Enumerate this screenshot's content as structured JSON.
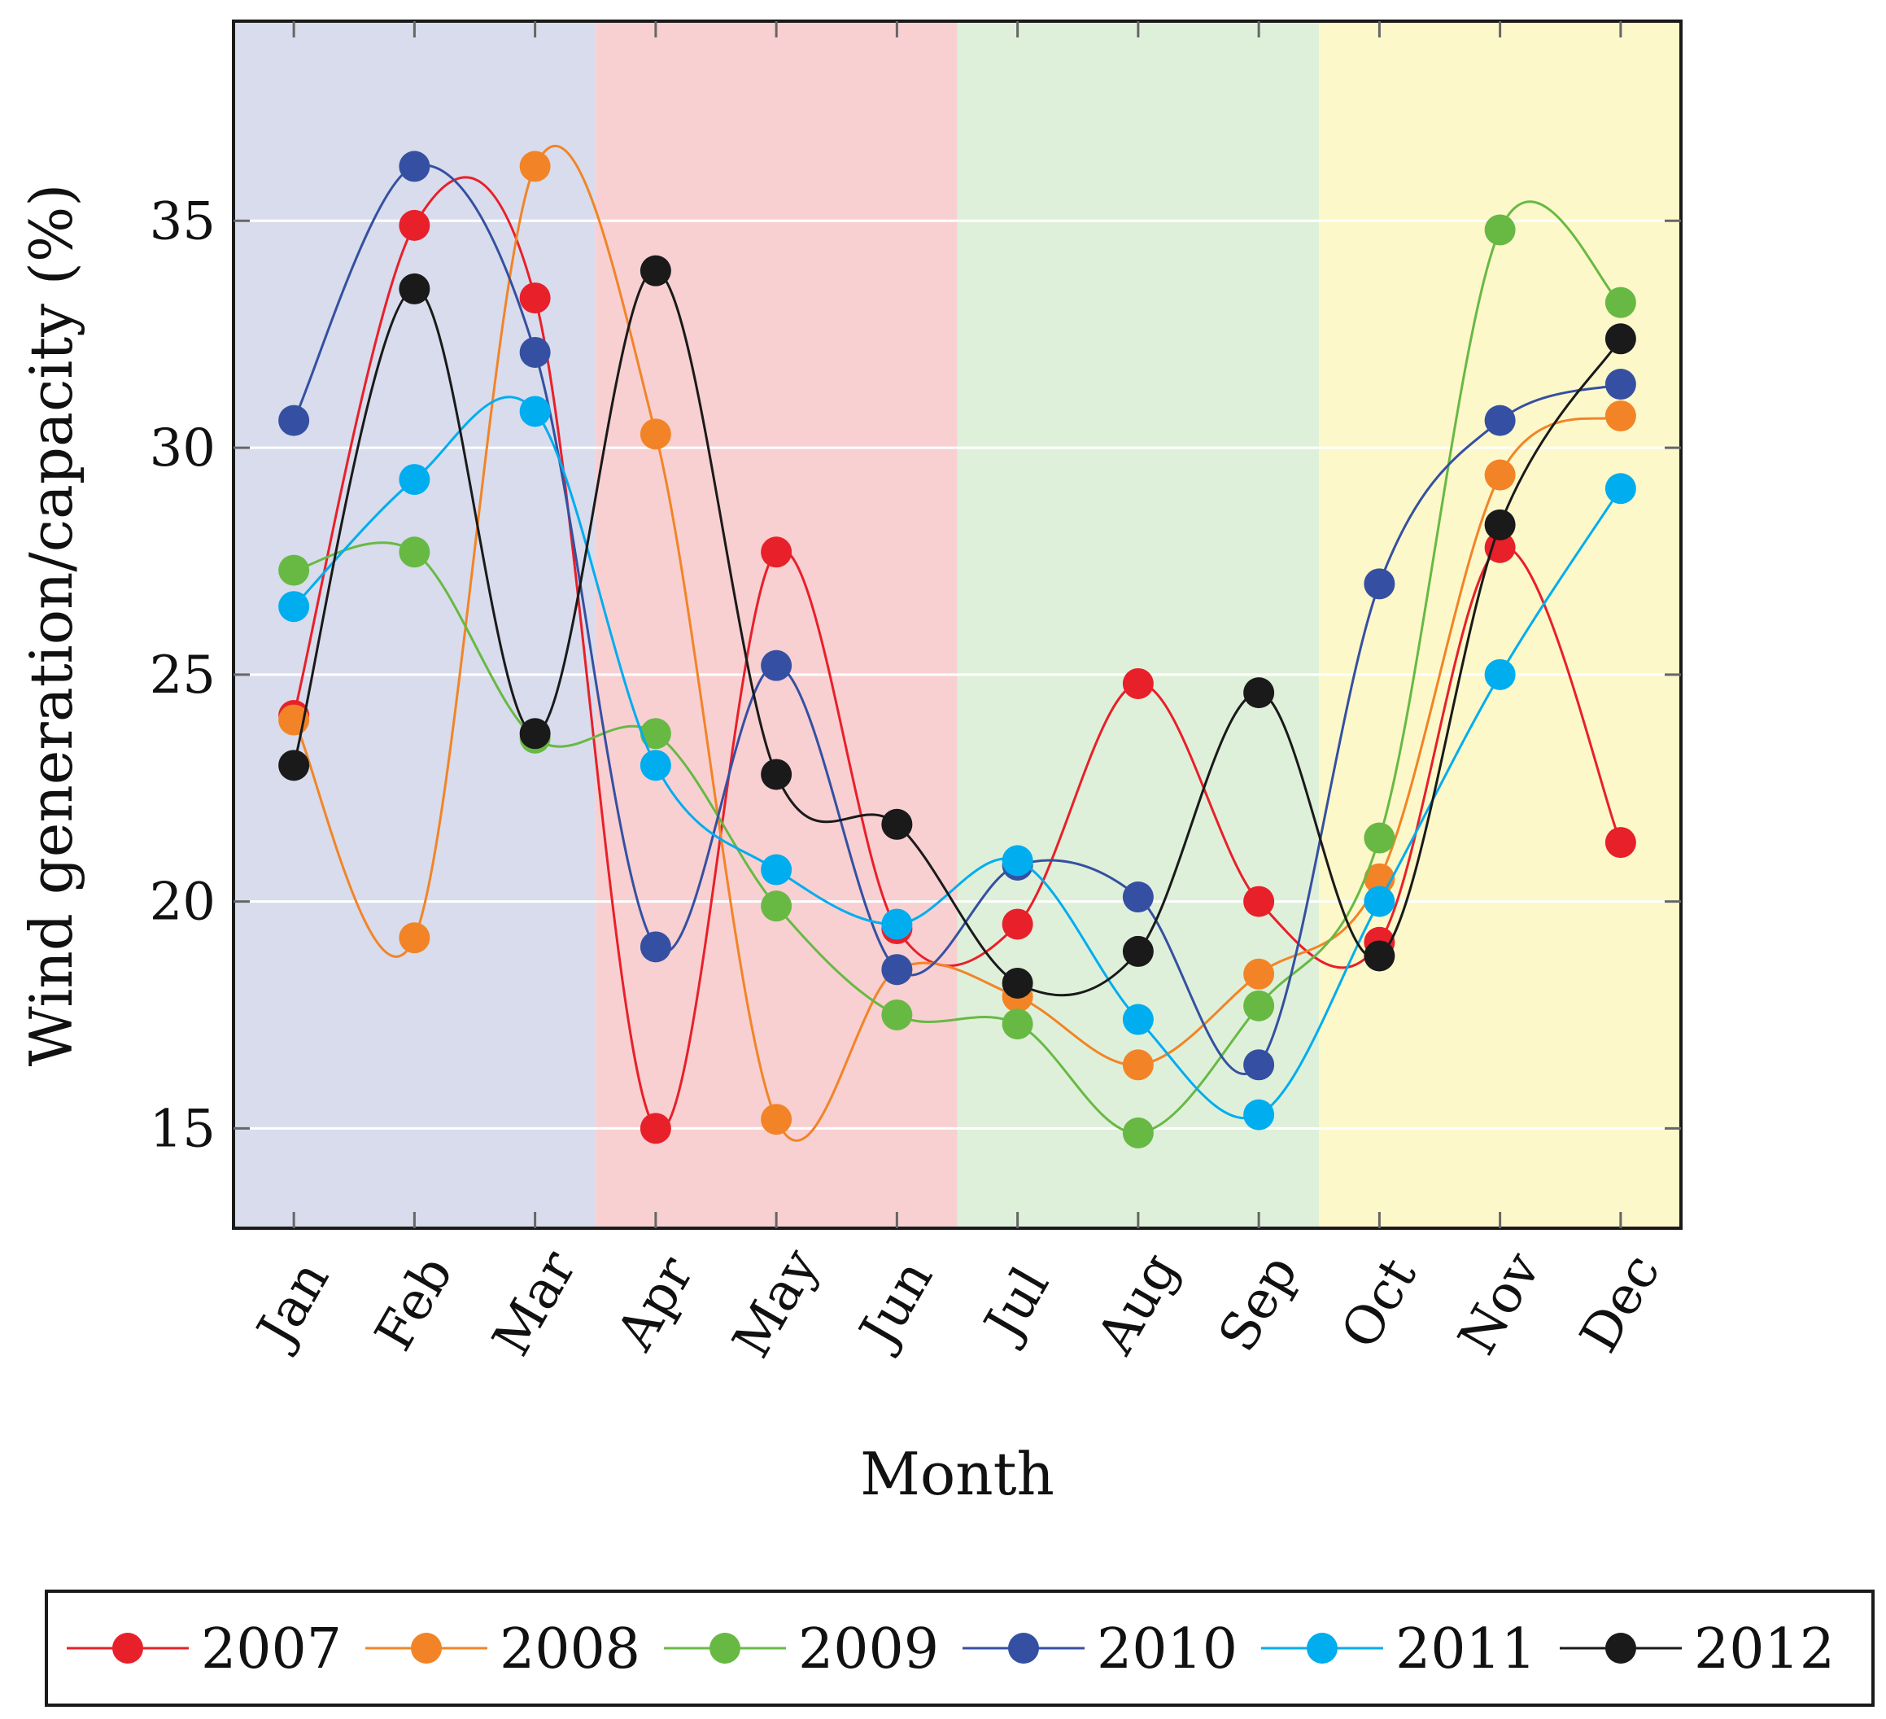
{
  "chart_data": {
    "type": "line",
    "title": "",
    "xlabel": "Month",
    "ylabel": "Wind generation/capacity (%)",
    "categories": [
      "Jan",
      "Feb",
      "Mar",
      "Apr",
      "May",
      "Jun",
      "Jul",
      "Aug",
      "Sep",
      "Oct",
      "Nov",
      "Dec"
    ],
    "ylim": [
      12.8,
      39.4
    ],
    "yticks": [
      15,
      20,
      25,
      30,
      35
    ],
    "grid": true,
    "legend_position": "bottom",
    "season_bands": [
      {
        "from": "Jan",
        "to": "Mar",
        "color": "#d8dcec"
      },
      {
        "from": "Apr",
        "to": "Jun",
        "color": "#f8d0d2"
      },
      {
        "from": "Jul",
        "to": "Sep",
        "color": "#dff0da"
      },
      {
        "from": "Oct",
        "to": "Dec",
        "color": "#fcf8ca"
      }
    ],
    "series": [
      {
        "name": "2007",
        "color": "#e8202a",
        "values": [
          24.1,
          34.9,
          33.3,
          15.0,
          27.7,
          19.4,
          19.5,
          24.8,
          20.0,
          19.1,
          27.8,
          21.3
        ]
      },
      {
        "name": "2008",
        "color": "#f28427",
        "values": [
          24.0,
          19.2,
          36.2,
          30.3,
          15.2,
          18.5,
          17.9,
          16.4,
          18.4,
          20.5,
          29.4,
          30.7
        ]
      },
      {
        "name": "2009",
        "color": "#68b944",
        "values": [
          27.3,
          27.7,
          23.6,
          23.7,
          19.9,
          17.5,
          17.3,
          14.9,
          17.7,
          21.4,
          34.8,
          33.2
        ]
      },
      {
        "name": "2010",
        "color": "#3550a2",
        "values": [
          30.6,
          36.2,
          32.1,
          19.0,
          25.2,
          18.5,
          20.8,
          20.1,
          16.4,
          27.0,
          30.6,
          31.4
        ]
      },
      {
        "name": "2011",
        "color": "#00adef",
        "values": [
          26.5,
          29.3,
          30.8,
          23.0,
          20.7,
          19.5,
          20.9,
          17.4,
          15.3,
          20.0,
          25.0,
          29.1
        ]
      },
      {
        "name": "2012",
        "color": "#1a1a1a",
        "values": [
          23.0,
          33.5,
          23.7,
          33.9,
          22.8,
          21.7,
          18.2,
          18.9,
          24.6,
          18.8,
          28.3,
          32.4
        ]
      }
    ]
  }
}
